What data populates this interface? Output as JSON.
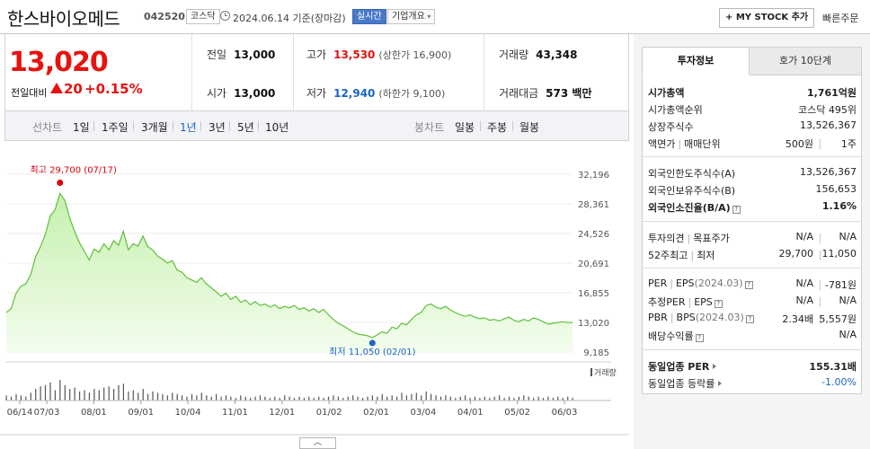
{
  "header": {
    "company_name": "한스바이오메드",
    "stock_code": "042520",
    "market": "코스닥",
    "date_text": "2024.06.14 기준(장마감)",
    "realtime_label": "실시간",
    "overview_label": "기업개요",
    "mystock_label": "+ MY STOCK 추가",
    "quick_order_label": "빠른주문"
  },
  "summary": {
    "price": "13,020",
    "vs_label": "전일대비",
    "change": "20",
    "change_pct": "+0.15%",
    "prev_close": {
      "label": "전일",
      "value": "13,000"
    },
    "open": {
      "label": "시가",
      "value": "13,000"
    },
    "high": {
      "label": "고가",
      "value": "13,530",
      "limit": "(상한가 16,900)"
    },
    "low": {
      "label": "저가",
      "value": "12,940",
      "limit": "(하한가 9,100)"
    },
    "volume": {
      "label": "거래량",
      "value": "43,348"
    },
    "amount": {
      "label": "거래대금",
      "value": "573 백만"
    },
    "colors": {
      "up": "#e5130e",
      "down": "#1a64c4"
    }
  },
  "periodbar": {
    "line_label": "선차트",
    "line_periods": [
      "1일",
      "1주일",
      "3개월",
      "1년",
      "3년",
      "5년",
      "10년"
    ],
    "active_period": "1년",
    "candle_label": "봉차트",
    "candle_periods": [
      "일봉",
      "주봉",
      "월봉"
    ]
  },
  "chart_data": {
    "type": "area",
    "y_ticks": [
      "32,196",
      "28,361",
      "24,526",
      "20,691",
      "16,855",
      "13,020",
      "9,185"
    ],
    "ylim": [
      9185,
      32196
    ],
    "x_ticks": [
      "06/14",
      "07/03",
      "08/01",
      "09/01",
      "10/04",
      "11/01",
      "12/01",
      "01/02",
      "02/01",
      "03/04",
      "04/01",
      "05/02",
      "06/03"
    ],
    "high_annotation": "최고 29,700 (07/17)",
    "low_annotation": "최저 11,050 (02/01)",
    "volume_legend": "거래량",
    "colors": {
      "line": "#5fbf3a",
      "fill": "#d9f6c8",
      "high": "#d9000d",
      "low": "#1a64c4",
      "volume": "#555555"
    },
    "series": [
      {
        "values": [
          14300,
          14800,
          16800,
          17700,
          18000,
          19200,
          21500,
          22800,
          24400,
          26800,
          27600,
          29700,
          28800,
          26500,
          24800,
          23300,
          22200,
          21100,
          22500,
          22100,
          23200,
          22400,
          23600,
          23000,
          24800,
          22400,
          23200,
          22900,
          24200,
          22800,
          22400,
          21600,
          21200,
          20700,
          21000,
          19800,
          19500,
          18800,
          18500,
          18200,
          18800,
          18000,
          17500,
          17000,
          16400,
          16800,
          16000,
          16400,
          15600,
          15900,
          15300,
          15700,
          15200,
          15400,
          15000,
          15300,
          14800,
          15100,
          14900,
          15200,
          14700,
          14900,
          14500,
          14800,
          14300,
          14700,
          14000,
          13400,
          12900,
          12600,
          12200,
          11800,
          11500,
          11400,
          11300,
          11050,
          11400,
          11800,
          11600,
          12400,
          12200,
          12900,
          12700,
          13400,
          14000,
          14300,
          15200,
          15400,
          15000,
          14800,
          15100,
          14600,
          14300,
          14000,
          13800,
          14000,
          13700,
          13500,
          13600,
          13300,
          13400,
          13200,
          13500,
          13700,
          13300,
          13100,
          13400,
          13200,
          13600,
          13400,
          13100,
          12800,
          12900,
          13000,
          13100,
          13000,
          13020
        ]
      },
      {
        "values": [
          4,
          3,
          5,
          4,
          3,
          6,
          9,
          11,
          12,
          14,
          8,
          16,
          12,
          9,
          10,
          7,
          8,
          6,
          9,
          8,
          10,
          11,
          9,
          12,
          13,
          7,
          8,
          6,
          9,
          5,
          7,
          6,
          5,
          4,
          6,
          5,
          4,
          3,
          5,
          4,
          6,
          4,
          3,
          5,
          3,
          4,
          3,
          2,
          4,
          3,
          2,
          3,
          4,
          3,
          2,
          3,
          2,
          4,
          3,
          2,
          3,
          2,
          3,
          2,
          3,
          2,
          3,
          4,
          3,
          2,
          3,
          4,
          3,
          2,
          3,
          4,
          3,
          5,
          3,
          4,
          3,
          6,
          4,
          5,
          6,
          4,
          7,
          5,
          4,
          3,
          4,
          3,
          2,
          3,
          4,
          2,
          3,
          2,
          3,
          2,
          3,
          4,
          2,
          3,
          2,
          3,
          4,
          3,
          2,
          3,
          2,
          3,
          2,
          3,
          2,
          3,
          2
        ]
      }
    ]
  },
  "right_panel": {
    "tabs": [
      "투자정보",
      "호가 10단계"
    ],
    "market_cap": {
      "label": "시가총액",
      "value": "1,761억원"
    },
    "cap_rank": {
      "label": "시가총액순위",
      "value": "코스닥 495위"
    },
    "shares": {
      "label": "상장주식수",
      "value": "13,526,367"
    },
    "par": {
      "label": "액면가",
      "label2": "매매단위",
      "value": "500원",
      "value2": "1주"
    },
    "foreign_limit": {
      "label": "외국인한도주식수(A)",
      "value": "13,526,367"
    },
    "foreign_held": {
      "label": "외국인보유주식수(B)",
      "value": "156,653"
    },
    "foreign_ratio": {
      "label": "외국인소진율(B/A)",
      "value": "1.16%"
    },
    "opinion": {
      "label": "투자의견",
      "label2": "목표주가",
      "value": "N/A",
      "value2": "N/A"
    },
    "week52": {
      "label": "52주최고",
      "label2": "최저",
      "value": "29,700",
      "value2": "11,050"
    },
    "per": {
      "label": "PER",
      "label2": "EPS",
      "period": "(2024.03)",
      "value": "N/A",
      "value2": "-781원"
    },
    "est_per": {
      "label": "추정PER",
      "label2": "EPS",
      "value": "N/A",
      "value2": "N/A"
    },
    "pbr": {
      "label": "PBR",
      "label2": "BPS",
      "period": "(2024.03)",
      "value": "2.34배",
      "value2": "5,557원"
    },
    "dividend": {
      "label": "배당수익률",
      "value": "N/A"
    },
    "sector_per": {
      "label": "동일업종 PER",
      "value": "155.31배"
    },
    "sector_change": {
      "label": "동일업종 등락률",
      "value": "-1.00%"
    }
  }
}
